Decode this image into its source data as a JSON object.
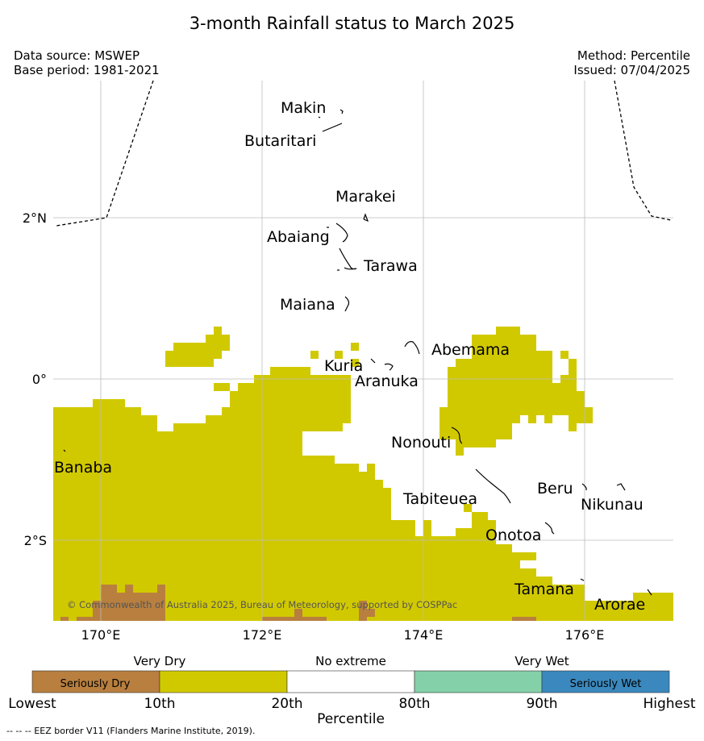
{
  "title": "3-month Rainfall status to March 2025",
  "source": {
    "line1": "Data source: MSWEP",
    "line2": "Base period: 1981-2021"
  },
  "method": {
    "line1": "Method: Percentile",
    "line2": "Issued: 07/04/2025"
  },
  "map": {
    "lon_ticks": [
      "170°E",
      "172°E",
      "174°E",
      "176°E"
    ],
    "lat_ticks": [
      "2°N",
      "0°",
      "2°S"
    ],
    "islands": [
      "Makin",
      "Butaritari",
      "Marakei",
      "Abaiang",
      "Tarawa",
      "Maiana",
      "Abemama",
      "Kuria",
      "Aranuka",
      "Banaba",
      "Nonouti",
      "Beru",
      "Tabiteuea",
      "Nikunau",
      "Onotoa",
      "Tamana",
      "Arorae"
    ],
    "copyright": "© Commonwealth of Australia 2025, Bureau of Meteorology, supported by COSPPac"
  },
  "legend": {
    "categories": [
      {
        "label": "Seriously Dry",
        "color": "#b87f3f"
      },
      {
        "label": "",
        "color": "#d1c900"
      },
      {
        "label": "",
        "color": "#ffffff"
      },
      {
        "label": "",
        "color": "#84d0a8"
      },
      {
        "label": "Seriously Wet",
        "color": "#3a88bd"
      }
    ],
    "group_labels": [
      "Very Dry",
      "No extreme",
      "Very Wet"
    ],
    "thresholds": [
      "Lowest",
      "10th",
      "20th",
      "80th",
      "90th",
      "Highest"
    ],
    "axis_label": "Percentile"
  },
  "footnote": "--  --  -- EEZ border V11 (Flanders Marine Institute, 2019)."
}
